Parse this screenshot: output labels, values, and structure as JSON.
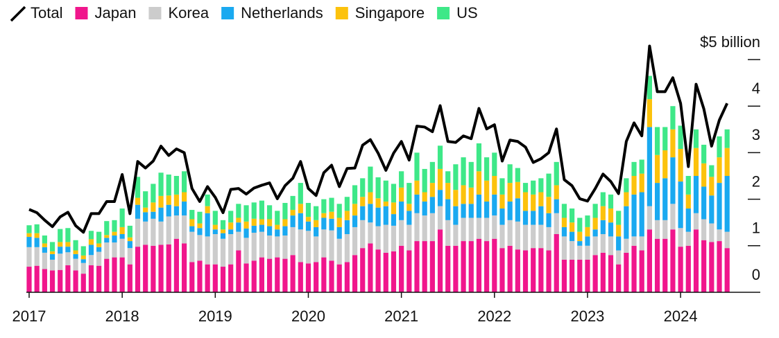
{
  "chart_data": {
    "type": "bar",
    "stacked": true,
    "categories": [
      "2017",
      null,
      null,
      null,
      null,
      null,
      null,
      null,
      null,
      null,
      null,
      null,
      "2018",
      null,
      null,
      null,
      null,
      null,
      null,
      null,
      null,
      null,
      null,
      null,
      "2019",
      null,
      null,
      null,
      null,
      null,
      null,
      null,
      null,
      null,
      null,
      null,
      "2020",
      null,
      null,
      null,
      null,
      null,
      null,
      null,
      null,
      null,
      null,
      null,
      "2021",
      null,
      null,
      null,
      null,
      null,
      null,
      null,
      null,
      null,
      null,
      null,
      "2022",
      null,
      null,
      null,
      null,
      null,
      null,
      null,
      null,
      null,
      null,
      null,
      "2023",
      null,
      null,
      null,
      null,
      null,
      null,
      null,
      null,
      null,
      null,
      null,
      "2024",
      null,
      null,
      null,
      null,
      null,
      null
    ],
    "ylim": [
      0,
      5.5
    ],
    "yticks": [
      0,
      1,
      2,
      3,
      4,
      {
        "value": 5,
        "label": "$5 billion"
      }
    ],
    "series": [
      {
        "name": "Total",
        "type": "line",
        "color": "#000000",
        "values": [
          1.78,
          1.71,
          1.55,
          1.41,
          1.62,
          1.72,
          1.43,
          1.29,
          1.69,
          1.69,
          1.95,
          1.95,
          2.53,
          1.69,
          2.81,
          2.67,
          2.82,
          3.14,
          2.94,
          3.08,
          3.0,
          2.23,
          1.95,
          2.27,
          2.04,
          1.71,
          2.21,
          2.23,
          2.11,
          2.24,
          2.3,
          2.35,
          2.01,
          2.29,
          2.45,
          2.81,
          2.23,
          2.08,
          2.57,
          2.73,
          2.27,
          2.66,
          2.67,
          3.16,
          3.28,
          2.99,
          2.62,
          2.99,
          3.24,
          2.84,
          3.57,
          3.55,
          3.45,
          4.01,
          3.24,
          3.22,
          3.36,
          3.3,
          3.95,
          3.51,
          3.6,
          2.82,
          3.27,
          3.24,
          3.12,
          2.79,
          2.87,
          3.0,
          3.51,
          2.42,
          2.29,
          2.01,
          1.96,
          2.23,
          2.54,
          2.38,
          2.12,
          3.24,
          3.64,
          3.36,
          5.29,
          4.31,
          4.31,
          4.61,
          4.06,
          2.7,
          4.47,
          3.94,
          3.14,
          3.7,
          4.06
        ]
      },
      {
        "name": "Japan",
        "color": "#f0168c",
        "values": [
          0.55,
          0.57,
          0.5,
          0.47,
          0.48,
          0.58,
          0.47,
          0.4,
          0.58,
          0.57,
          0.72,
          0.75,
          0.75,
          0.6,
          0.98,
          1.02,
          1.0,
          1.02,
          1.03,
          1.15,
          1.05,
          0.65,
          0.68,
          0.6,
          0.6,
          0.55,
          0.6,
          0.9,
          0.62,
          0.68,
          0.75,
          0.72,
          0.75,
          0.72,
          0.8,
          0.65,
          0.62,
          0.65,
          0.75,
          0.68,
          0.6,
          0.65,
          0.8,
          0.95,
          1.05,
          0.92,
          0.85,
          0.88,
          1.0,
          0.9,
          1.1,
          1.1,
          1.1,
          1.35,
          1.0,
          1.0,
          1.1,
          1.1,
          1.15,
          1.1,
          1.15,
          0.95,
          1.0,
          0.92,
          0.9,
          0.95,
          0.95,
          0.9,
          1.25,
          0.7,
          0.7,
          0.7,
          0.7,
          0.8,
          0.85,
          0.8,
          0.6,
          0.85,
          1.0,
          0.9,
          1.35,
          1.15,
          1.15,
          1.35,
          0.98,
          1.0,
          1.35,
          1.12,
          1.08,
          1.1,
          0.95
        ]
      },
      {
        "name": "Korea",
        "color": "#cccccc",
        "values": [
          0.42,
          0.4,
          0.35,
          0.23,
          0.35,
          0.28,
          0.25,
          0.23,
          0.22,
          0.3,
          0.35,
          0.32,
          0.4,
          0.35,
          0.6,
          0.5,
          0.58,
          0.5,
          0.6,
          0.5,
          0.6,
          0.65,
          0.55,
          0.6,
          0.65,
          0.6,
          0.65,
          0.4,
          0.55,
          0.6,
          0.55,
          0.5,
          0.45,
          0.5,
          0.6,
          0.7,
          0.7,
          0.55,
          0.6,
          0.65,
          0.55,
          0.6,
          0.6,
          0.6,
          0.45,
          0.5,
          0.6,
          0.55,
          0.55,
          0.55,
          0.6,
          0.55,
          0.6,
          0.5,
          0.55,
          0.45,
          0.5,
          0.5,
          0.45,
          0.5,
          0.5,
          0.5,
          0.55,
          0.6,
          0.55,
          0.5,
          0.5,
          0.5,
          0.45,
          0.5,
          0.4,
          0.3,
          0.3,
          0.4,
          0.4,
          0.4,
          0.3,
          0.3,
          0.2,
          0.3,
          0.5,
          0.4,
          0.4,
          0.55,
          0.4,
          0.3,
          0.35,
          0.45,
          0.4,
          0.25,
          0.35
        ]
      },
      {
        "name": "Netherlands",
        "color": "#1aa9f0",
        "values": [
          0.22,
          0.2,
          0.12,
          0.12,
          0.15,
          0.12,
          0.1,
          0.08,
          0.22,
          0.1,
          0.1,
          0.15,
          0.1,
          0.15,
          0.3,
          0.2,
          0.15,
          0.3,
          0.25,
          0.2,
          0.3,
          0.12,
          0.15,
          0.5,
          0.1,
          0.12,
          0.1,
          0.2,
          0.2,
          0.15,
          0.15,
          0.2,
          0.15,
          0.2,
          0.25,
          0.35,
          0.2,
          0.2,
          0.25,
          0.25,
          0.25,
          0.3,
          0.25,
          0.3,
          0.4,
          0.4,
          0.4,
          0.25,
          0.4,
          0.3,
          0.4,
          0.3,
          0.35,
          0.35,
          0.45,
          0.4,
          0.3,
          0.3,
          0.5,
          0.35,
          0.45,
          0.35,
          0.4,
          0.5,
          0.3,
          0.3,
          0.4,
          0.3,
          0.3,
          0.2,
          0.2,
          0.1,
          0.2,
          0.15,
          0.3,
          0.3,
          0.3,
          0.7,
          0.9,
          0.95,
          1.7,
          0.8,
          0.9,
          1.0,
          1.0,
          0.5,
          0.8,
          0.7,
          0.6,
          1.0,
          1.2
        ]
      },
      {
        "name": "Singapore",
        "color": "#fcc20c",
        "values": [
          0.08,
          0.1,
          0.08,
          0.06,
          0.1,
          0.1,
          0.08,
          0.08,
          0.12,
          0.08,
          0.06,
          0.08,
          0.15,
          0.08,
          0.15,
          0.1,
          0.2,
          0.25,
          0.2,
          0.25,
          0.2,
          0.15,
          0.1,
          0.15,
          0.1,
          0.08,
          0.15,
          0.1,
          0.15,
          0.15,
          0.12,
          0.15,
          0.1,
          0.15,
          0.12,
          0.2,
          0.1,
          0.15,
          0.1,
          0.15,
          0.2,
          0.2,
          0.25,
          0.2,
          0.25,
          0.2,
          0.1,
          0.25,
          0.3,
          0.15,
          0.3,
          0.2,
          0.3,
          0.45,
          0.35,
          0.35,
          0.4,
          0.35,
          0.5,
          0.45,
          0.4,
          0.3,
          0.4,
          0.35,
          0.4,
          0.35,
          0.3,
          0.35,
          0.3,
          0.2,
          0.2,
          0.2,
          0.2,
          0.25,
          0.3,
          0.3,
          0.25,
          0.3,
          0.4,
          0.4,
          0.6,
          0.6,
          0.6,
          0.6,
          0.7,
          0.3,
          0.6,
          0.5,
          0.4,
          0.55,
          0.6
        ]
      },
      {
        "name": "US",
        "color": "#3ee888",
        "values": [
          0.17,
          0.19,
          0.17,
          0.2,
          0.28,
          0.3,
          0.22,
          0.2,
          0.18,
          0.25,
          0.3,
          0.25,
          0.4,
          0.25,
          0.45,
          0.35,
          0.4,
          0.5,
          0.45,
          0.4,
          0.45,
          0.2,
          0.25,
          0.25,
          0.3,
          0.2,
          0.25,
          0.3,
          0.35,
          0.35,
          0.4,
          0.3,
          0.3,
          0.35,
          0.3,
          0.45,
          0.3,
          0.3,
          0.3,
          0.3,
          0.3,
          0.3,
          0.4,
          0.4,
          0.55,
          0.45,
          0.45,
          0.4,
          0.35,
          0.45,
          0.6,
          0.5,
          0.45,
          0.5,
          0.25,
          0.55,
          0.6,
          0.55,
          0.6,
          0.5,
          0.5,
          0.35,
          0.4,
          0.3,
          0.2,
          0.3,
          0.3,
          0.5,
          0.5,
          0.3,
          0.3,
          0.3,
          0.25,
          0.3,
          0.3,
          0.3,
          0.3,
          0.3,
          0.3,
          0.3,
          0.5,
          0.6,
          0.5,
          0.5,
          0.5,
          0.4,
          0.4,
          0.4,
          0.25,
          0.45,
          0.4
        ]
      }
    ]
  }
}
